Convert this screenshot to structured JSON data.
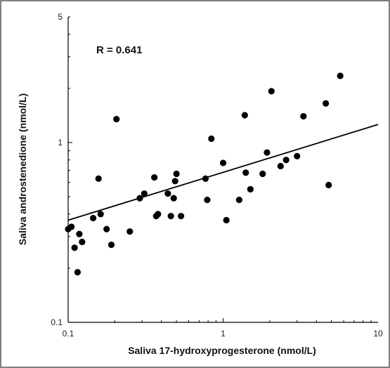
{
  "chart_data": {
    "type": "scatter",
    "xlabel": "Saliva 17-hydroxyprogesterone (nmol/L)",
    "ylabel": "Saliva androstenedione (nmol/L)",
    "annotation": "R = 0.641",
    "x_scale": "log",
    "y_scale": "log",
    "xlim": [
      0.1,
      10
    ],
    "ylim": [
      0.1,
      5
    ],
    "x_ticks": [
      {
        "value": 0.1,
        "label": "0.1"
      },
      {
        "value": 1,
        "label": "1"
      },
      {
        "value": 10,
        "label": "10"
      }
    ],
    "y_ticks": [
      {
        "value": 0.1,
        "label": "0.1"
      },
      {
        "value": 1,
        "label": "1"
      },
      {
        "value": 5,
        "label": "5"
      }
    ],
    "grid": false,
    "legend": "none",
    "point_color": "#000000",
    "points": [
      {
        "x": 0.1,
        "y": 0.33
      },
      {
        "x": 0.105,
        "y": 0.34
      },
      {
        "x": 0.11,
        "y": 0.26
      },
      {
        "x": 0.115,
        "y": 0.19
      },
      {
        "x": 0.118,
        "y": 0.31
      },
      {
        "x": 0.123,
        "y": 0.28
      },
      {
        "x": 0.145,
        "y": 0.38
      },
      {
        "x": 0.157,
        "y": 0.63
      },
      {
        "x": 0.162,
        "y": 0.4
      },
      {
        "x": 0.177,
        "y": 0.33
      },
      {
        "x": 0.19,
        "y": 0.27
      },
      {
        "x": 0.205,
        "y": 1.35
      },
      {
        "x": 0.25,
        "y": 0.32
      },
      {
        "x": 0.29,
        "y": 0.49
      },
      {
        "x": 0.31,
        "y": 0.52
      },
      {
        "x": 0.36,
        "y": 0.64
      },
      {
        "x": 0.37,
        "y": 0.39
      },
      {
        "x": 0.38,
        "y": 0.4
      },
      {
        "x": 0.44,
        "y": 0.52
      },
      {
        "x": 0.46,
        "y": 0.39
      },
      {
        "x": 0.48,
        "y": 0.49
      },
      {
        "x": 0.49,
        "y": 0.61
      },
      {
        "x": 0.5,
        "y": 0.67
      },
      {
        "x": 0.535,
        "y": 0.39
      },
      {
        "x": 0.77,
        "y": 0.63
      },
      {
        "x": 0.79,
        "y": 0.48
      },
      {
        "x": 0.84,
        "y": 1.05
      },
      {
        "x": 1.0,
        "y": 0.77
      },
      {
        "x": 1.05,
        "y": 0.37
      },
      {
        "x": 1.27,
        "y": 0.48
      },
      {
        "x": 1.38,
        "y": 1.42
      },
      {
        "x": 1.4,
        "y": 0.68
      },
      {
        "x": 1.5,
        "y": 0.55
      },
      {
        "x": 1.8,
        "y": 0.67
      },
      {
        "x": 1.92,
        "y": 0.88
      },
      {
        "x": 2.05,
        "y": 1.93
      },
      {
        "x": 2.35,
        "y": 0.74
      },
      {
        "x": 2.55,
        "y": 0.8
      },
      {
        "x": 3.0,
        "y": 0.84
      },
      {
        "x": 3.3,
        "y": 1.4
      },
      {
        "x": 4.6,
        "y": 1.65
      },
      {
        "x": 4.8,
        "y": 0.58
      },
      {
        "x": 5.7,
        "y": 2.35
      }
    ],
    "regression": {
      "x": [
        0.1,
        10
      ],
      "y": [
        0.37,
        1.26
      ]
    }
  }
}
